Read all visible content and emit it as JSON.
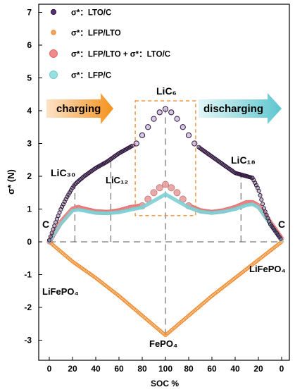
{
  "chart_data": {
    "type": "scatter",
    "title": "",
    "xlabel": "SOC %",
    "ylabel": "σ* (N)",
    "ylim": [
      -3.5,
      7.5
    ],
    "x_ticks": [
      "0",
      "20",
      "40",
      "60",
      "80",
      "100",
      "80",
      "60",
      "40",
      "20",
      "0"
    ],
    "y_ticks": [
      "-3",
      "-2",
      "-1",
      "0",
      "1",
      "2",
      "3",
      "4",
      "5",
      "6",
      "7"
    ],
    "x_axis_note": "SOC rises from 0 to 100 while charging, then falls back to 0 while discharging; positions below are given as cycle progress 0–200",
    "legend_position": "top-left",
    "series": [
      {
        "name": "σ*：LTO/C",
        "color": "#3b1f4a",
        "x": [
          0,
          5,
          10,
          15,
          20,
          22,
          25,
          30,
          40,
          50,
          60,
          70,
          75,
          80,
          85,
          90,
          95,
          100,
          105,
          110,
          115,
          120,
          125,
          130,
          140,
          150,
          160,
          170,
          175,
          180,
          185,
          190,
          195,
          200
        ],
        "y": [
          0.05,
          0.55,
          1.0,
          1.35,
          1.65,
          1.75,
          1.85,
          2.0,
          2.25,
          2.45,
          2.7,
          2.9,
          3.0,
          3.25,
          3.5,
          3.75,
          3.95,
          4.05,
          3.95,
          3.75,
          3.5,
          3.25,
          3.0,
          2.85,
          2.6,
          2.35,
          2.1,
          2.0,
          1.95,
          1.6,
          1.0,
          0.55,
          0.3,
          0.05
        ]
      },
      {
        "name": "σ*：LFP/LTO",
        "color": "#f4a460",
        "x": [
          0,
          20,
          40,
          60,
          80,
          100,
          120,
          140,
          160,
          180,
          200
        ],
        "y": [
          0,
          -0.6,
          -1.1,
          -1.65,
          -2.25,
          -2.85,
          -2.25,
          -1.65,
          -1.1,
          -0.55,
          0
        ]
      },
      {
        "name": "σ*：LFP/LTO + σ*：LTO/C",
        "color": "#f08a8a",
        "x": [
          0,
          10,
          20,
          25,
          30,
          40,
          50,
          60,
          70,
          80,
          85,
          90,
          95,
          100,
          105,
          110,
          115,
          120,
          130,
          140,
          150,
          160,
          170,
          175,
          180,
          190,
          200
        ],
        "y": [
          0,
          0.6,
          1.0,
          1.05,
          1.0,
          0.92,
          0.9,
          0.95,
          1.05,
          1.1,
          1.3,
          1.5,
          1.65,
          1.75,
          1.65,
          1.5,
          1.3,
          1.1,
          0.95,
          0.9,
          0.95,
          1.05,
          1.2,
          1.2,
          1.1,
          0.6,
          0.1
        ]
      },
      {
        "name": "σ*：LFP/C",
        "color": "#88d6d8",
        "x": [
          0,
          10,
          20,
          25,
          30,
          40,
          50,
          60,
          70,
          80,
          85,
          90,
          95,
          100,
          105,
          110,
          115,
          120,
          130,
          140,
          150,
          160,
          170,
          175,
          180,
          190,
          200
        ],
        "y": [
          0,
          0.55,
          0.95,
          0.98,
          0.95,
          0.88,
          0.87,
          0.9,
          0.98,
          1.05,
          1.15,
          1.25,
          1.35,
          1.45,
          1.35,
          1.25,
          1.15,
          1.05,
          0.92,
          0.88,
          0.92,
          1.0,
          1.12,
          1.15,
          1.05,
          0.55,
          0.05
        ]
      }
    ],
    "annotations": {
      "charging": "charging",
      "discharging": "discharging",
      "c_left": "C",
      "c_right": "C",
      "licc30": "LiC₃₀",
      "licc12": "LiC₁₂",
      "licc6": "LiC₆",
      "licc18": "LiC₁₈",
      "lifepo4_left": "LiFePO₄",
      "lifepo4_right": "LiFePO₄",
      "fepo4": "FePO₄"
    }
  }
}
